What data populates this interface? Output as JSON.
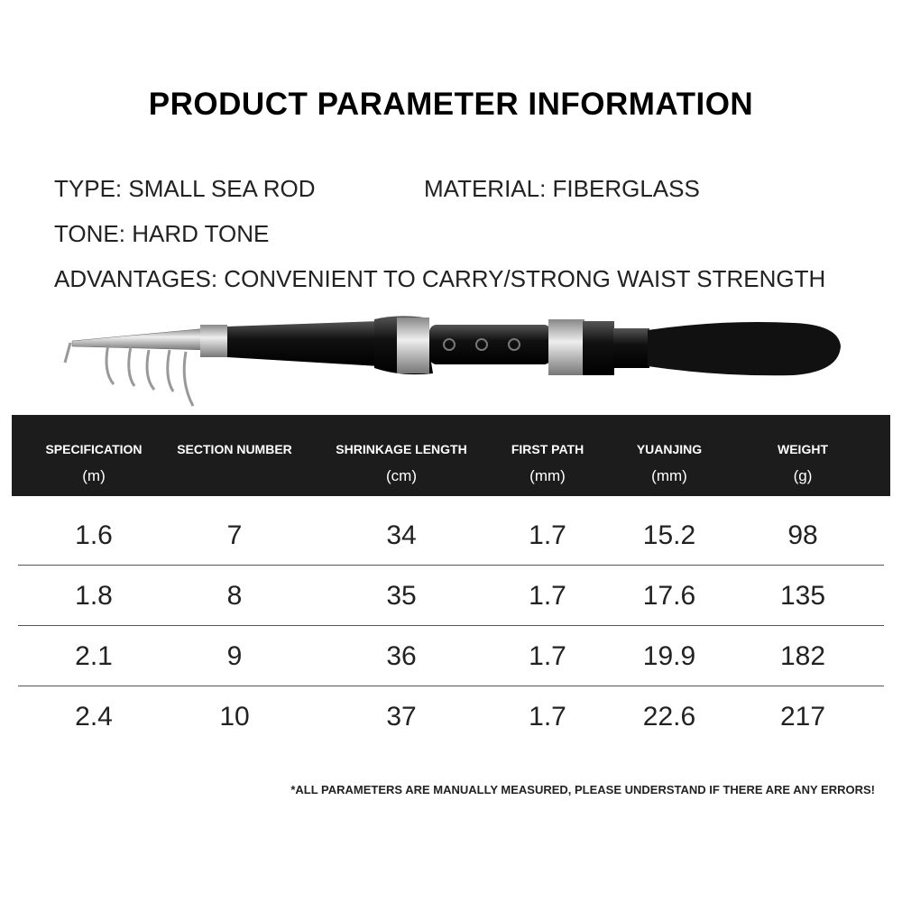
{
  "header": {
    "title": "PRODUCT PARAMETER INFORMATION"
  },
  "specs": {
    "type": "TYPE: SMALL SEA ROD",
    "material": "MATERIAL: FIBERGLASS",
    "tone": "TONE: HARD TONE",
    "advantages": "ADVANTAGES: CONVENIENT TO CARRY/STRONG WAIST STRENGTH"
  },
  "table": {
    "columns": [
      {
        "name": "SPECIFICATION",
        "unit": "(m)"
      },
      {
        "name": "SECTION NUMBER"
      },
      {
        "name": "SHRINKAGE LENGTH",
        "unit": "(cm)"
      },
      {
        "name": "FIRST PATH",
        "unit": "(mm)"
      },
      {
        "name": "YUANJING",
        "unit": "(mm)"
      },
      {
        "name": "WEIGHT",
        "unit": "(g)"
      }
    ],
    "rows": [
      [
        "1.6",
        "7",
        "34",
        "1.7",
        "15.2",
        "98"
      ],
      [
        "1.8",
        "8",
        "35",
        "1.7",
        "17.6",
        "135"
      ],
      [
        "2.1",
        "9",
        "36",
        "1.7",
        "19.9",
        "182"
      ],
      [
        "2.4",
        "10",
        "37",
        "1.7",
        "22.6",
        "217"
      ]
    ]
  },
  "footnote": "*ALL PARAMETERS ARE MANUALLY MEASURED, PLEASE UNDERSTAND IF THERE ARE ANY ERRORS!"
}
